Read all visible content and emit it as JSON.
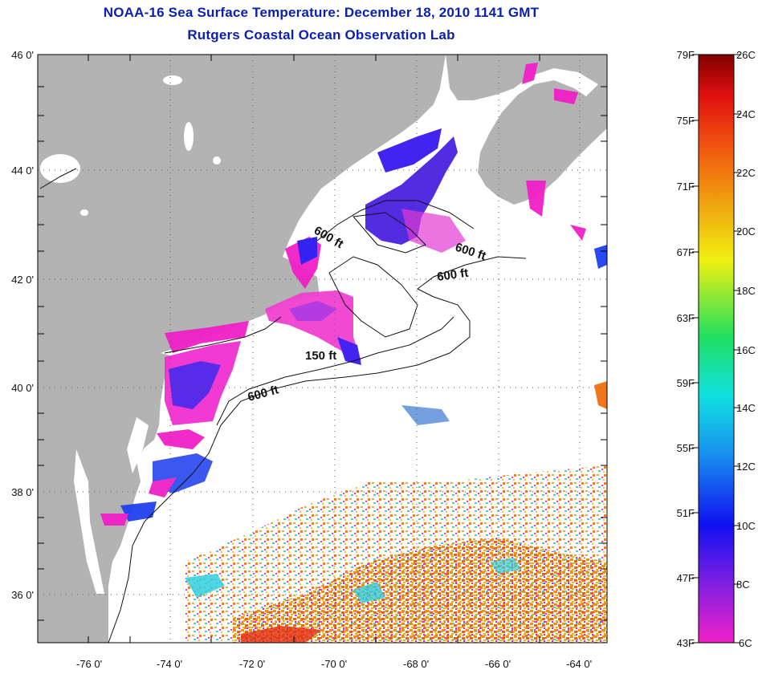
{
  "header": {
    "title": "NOAA-16 Sea Surface Temperature:  December 18, 2010 1141 GMT",
    "subtitle": "Rutgers Coastal Ocean Observation Lab"
  },
  "map": {
    "lat_labels": [
      "46 0'",
      "44 0'",
      "42 0'",
      "40 0'",
      "38 0'",
      "36 0'"
    ],
    "lon_labels": [
      "-76 0'",
      "-74 0'",
      "-72 0'",
      "-70 0'",
      "-68 0'",
      "-66 0'",
      "-64 0'"
    ],
    "lat_range": [
      35,
      46
    ],
    "lon_range": [
      -77,
      -63
    ],
    "contour_labels": [
      "600 ft",
      "600 ft",
      "600 ft",
      "150 ft",
      "600 ft"
    ]
  },
  "colorbar": {
    "fahrenheit": [
      "79F",
      "75F",
      "71F",
      "67F",
      "63F",
      "59F",
      "55F",
      "51F",
      "47F",
      "43F"
    ],
    "celsius": [
      "26C",
      "24C",
      "22C",
      "20C",
      "18C",
      "16C",
      "14C",
      "12C",
      "10C",
      "8C",
      "6C"
    ],
    "colors": [
      "#f020c8",
      "#8020e0",
      "#1010f0",
      "#1890f0",
      "#10e0e0",
      "#20e060",
      "#f0f010",
      "#f0a010",
      "#f05010",
      "#e01010",
      "#800000"
    ]
  },
  "colors": {
    "land": "#b3b3b3",
    "ocean": "#ffffff",
    "title": "#0b1fb0"
  }
}
